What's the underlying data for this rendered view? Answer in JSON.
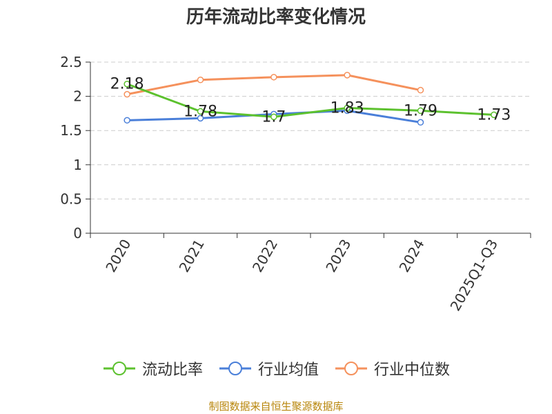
{
  "chart_data": {
    "type": "line",
    "title": "历年流动比率变化情况",
    "categories": [
      "2020",
      "2021",
      "2022",
      "2023",
      "2024",
      "2025Q1-Q3"
    ],
    "ylim": [
      0,
      2.5
    ],
    "yticks": [
      "0",
      "0.5",
      "1",
      "1.5",
      "2",
      "2.5"
    ],
    "grid": true,
    "legend_position": "bottom",
    "series": [
      {
        "name": "流动比率",
        "color": "#5cc12e",
        "values": [
          2.18,
          1.78,
          1.7,
          1.83,
          1.79,
          1.73
        ],
        "labels": [
          "2.18",
          "1.78",
          "1.7",
          "1.83",
          "1.79",
          "1.73"
        ]
      },
      {
        "name": "行业均值",
        "color": "#4a7fd9",
        "values": [
          1.65,
          1.68,
          1.74,
          1.79,
          1.62,
          null
        ]
      },
      {
        "name": "行业中位数",
        "color": "#f5915c",
        "values": [
          2.03,
          2.24,
          2.28,
          2.31,
          2.09,
          null
        ]
      }
    ]
  },
  "source_note": "制图数据来自恒生聚源数据库"
}
